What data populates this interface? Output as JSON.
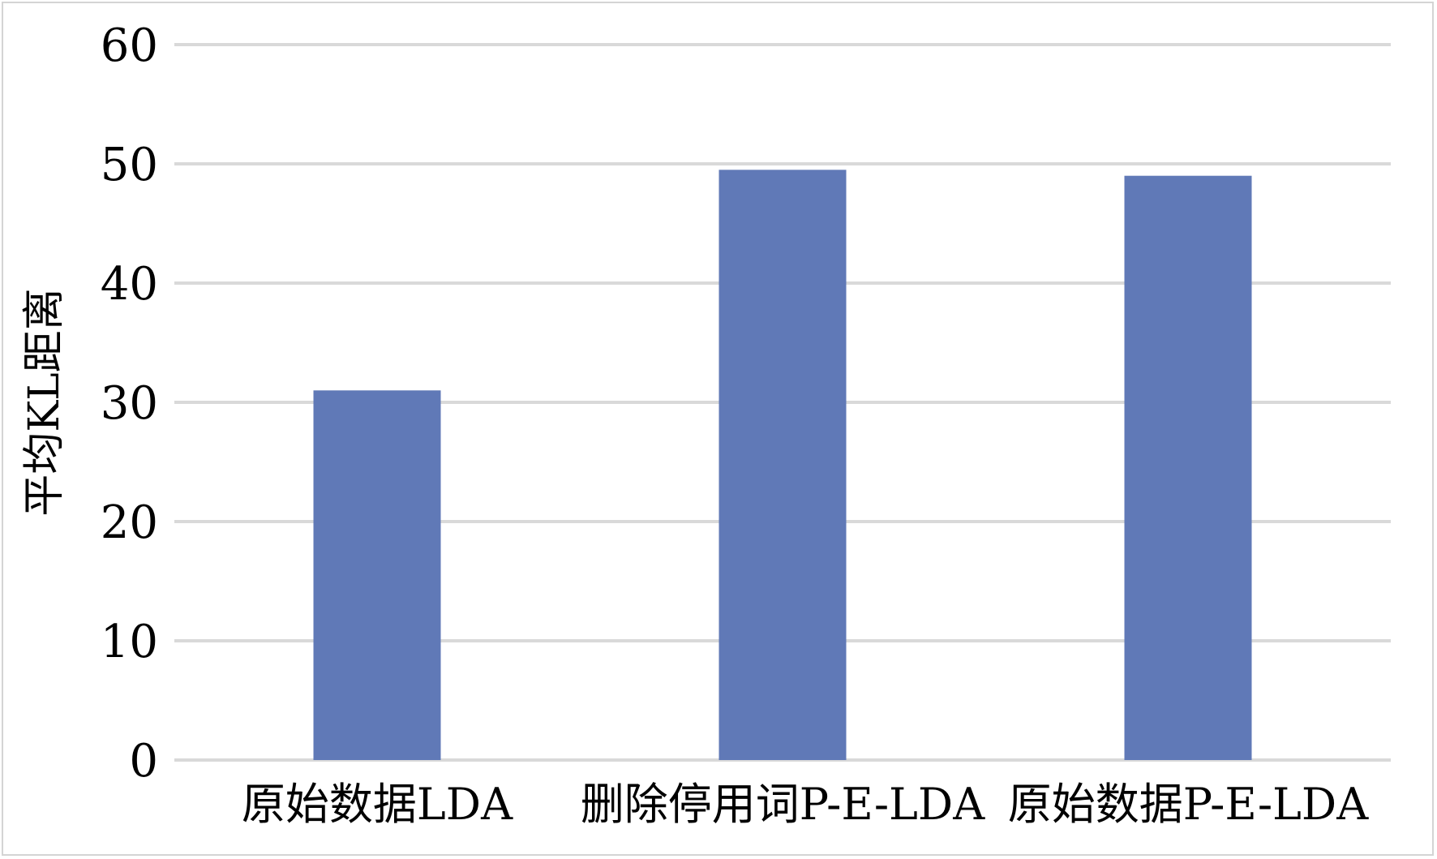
{
  "chart_data": {
    "type": "bar",
    "title": "",
    "xlabel": "",
    "ylabel": "平均KL距离",
    "categories": [
      "原始数据LDA",
      "删除停用词P-E-LDA",
      "原始数据P-E-LDA"
    ],
    "values": [
      31,
      49.5,
      49
    ],
    "ylim": [
      0,
      60
    ],
    "yticks": [
      0,
      10,
      20,
      30,
      40,
      50,
      60
    ],
    "grid": true,
    "legend": "none",
    "bar_color": "#6079b7",
    "grid_color": "#d9d9d9"
  }
}
